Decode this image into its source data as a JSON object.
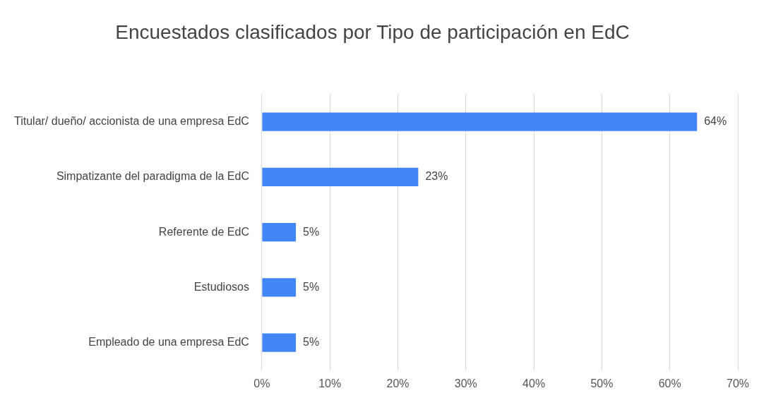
{
  "chart_data": {
    "type": "bar",
    "orientation": "horizontal",
    "title": "Encuestados clasificados por Tipo de participación en EdC",
    "categories": [
      "Titular/ dueño/ accionista de una empresa EdC",
      "Simpatizante del paradigma de la EdC",
      "Referente de EdC",
      "Estudiosos",
      "Empleado de una empresa EdC"
    ],
    "values": [
      64,
      23,
      5,
      5,
      5
    ],
    "value_labels": [
      "64%",
      "23%",
      "5%",
      "5%",
      "5%"
    ],
    "color": "#4285f4",
    "xlim": [
      0,
      70
    ],
    "xticks": [
      {
        "value": 0,
        "label": "0%"
      },
      {
        "value": 10,
        "label": "10%"
      },
      {
        "value": 20,
        "label": "20%"
      },
      {
        "value": 30,
        "label": "30%"
      },
      {
        "value": 40,
        "label": "40%"
      },
      {
        "value": 50,
        "label": "50%"
      },
      {
        "value": 60,
        "label": "60%"
      },
      {
        "value": 70,
        "label": "70%"
      }
    ],
    "grid": "x",
    "legend": false
  }
}
